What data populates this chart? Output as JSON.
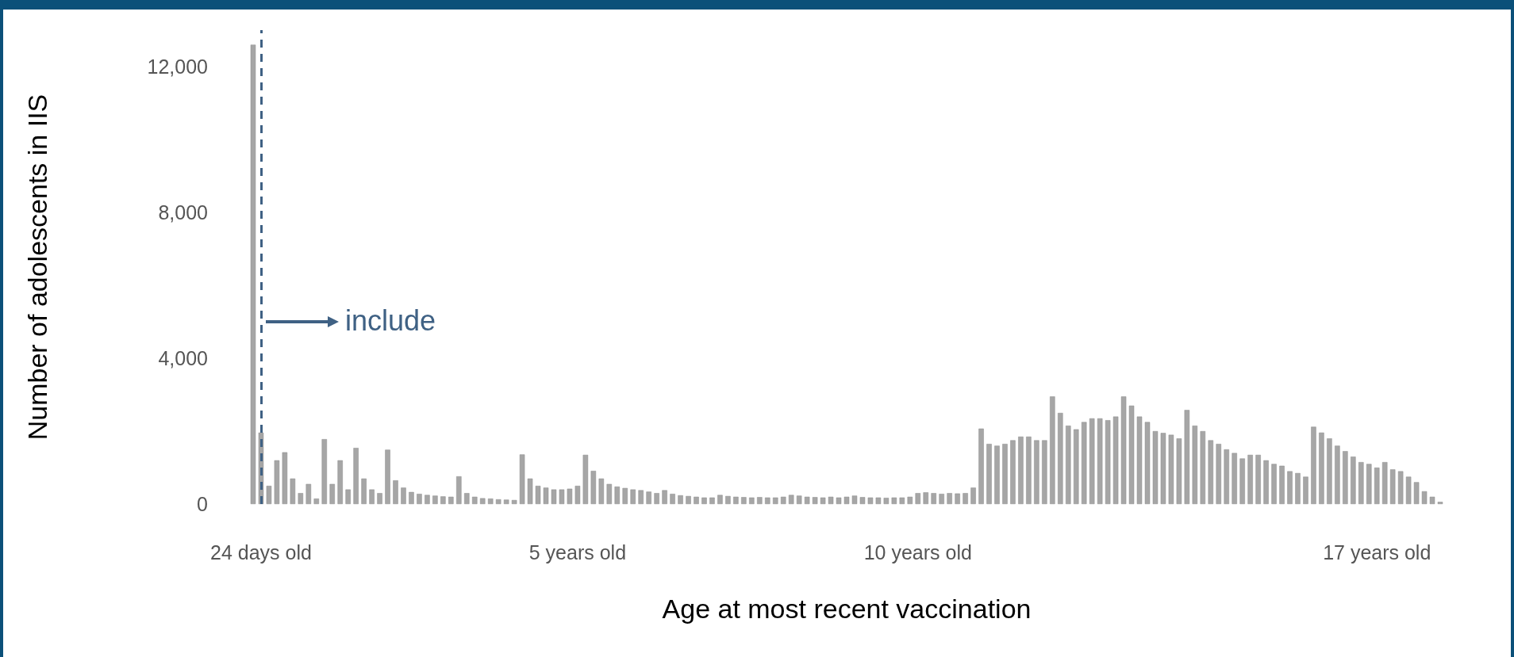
{
  "chart_data": {
    "type": "bar",
    "xlabel": "Age at most recent vaccination",
    "ylabel": "Number of adolescents in IIS",
    "categories": [
      null,
      "24 days old",
      null,
      null,
      null,
      null,
      null,
      null,
      null,
      null,
      null,
      null,
      null,
      null,
      null,
      null,
      null,
      null,
      null,
      null,
      null,
      null,
      null,
      null,
      null,
      null,
      null,
      null,
      null,
      null,
      null,
      null,
      null,
      null,
      null,
      null,
      null,
      null,
      null,
      null,
      null,
      "5 years old",
      null,
      null,
      null,
      null,
      null,
      null,
      null,
      null,
      null,
      null,
      null,
      null,
      null,
      null,
      null,
      null,
      null,
      null,
      null,
      null,
      null,
      null,
      null,
      null,
      null,
      null,
      null,
      null,
      null,
      null,
      null,
      null,
      null,
      null,
      null,
      null,
      null,
      null,
      null,
      null,
      null,
      null,
      "10 years old",
      null,
      null,
      null,
      null,
      null,
      null,
      null,
      null,
      null,
      null,
      null,
      null,
      null,
      null,
      null,
      null,
      null,
      null,
      null,
      null,
      null,
      null,
      null,
      null,
      null,
      null,
      null,
      null,
      null,
      null,
      null,
      null,
      null,
      null,
      null,
      null,
      null,
      null,
      null,
      null,
      null,
      null,
      null,
      null,
      null,
      null,
      null,
      null,
      null,
      null,
      null,
      null,
      null,
      null,
      null,
      null,
      null,
      "17 years old",
      null,
      null,
      null,
      null,
      null,
      null,
      null,
      null
    ],
    "values": [
      12600,
      1960,
      500,
      1200,
      1420,
      700,
      300,
      550,
      150,
      1780,
      550,
      1200,
      400,
      1540,
      700,
      400,
      300,
      1490,
      650,
      450,
      330,
      280,
      250,
      230,
      210,
      200,
      760,
      300,
      200,
      160,
      150,
      130,
      120,
      110,
      1360,
      700,
      500,
      450,
      400,
      400,
      420,
      500,
      1350,
      910,
      700,
      550,
      480,
      440,
      400,
      380,
      340,
      300,
      380,
      280,
      240,
      220,
      200,
      180,
      180,
      250,
      220,
      200,
      190,
      180,
      190,
      180,
      180,
      200,
      250,
      230,
      200,
      190,
      180,
      200,
      180,
      200,
      230,
      190,
      180,
      180,
      170,
      180,
      180,
      200,
      300,
      320,
      300,
      280,
      300,
      290,
      300,
      450,
      2070,
      1650,
      1600,
      1650,
      1750,
      1850,
      1850,
      1750,
      1750,
      2950,
      2500,
      2150,
      2050,
      2250,
      2350,
      2350,
      2300,
      2400,
      2950,
      2700,
      2400,
      2250,
      2000,
      1950,
      1900,
      1800,
      2580,
      2150,
      2000,
      1750,
      1650,
      1500,
      1400,
      1250,
      1350,
      1350,
      1200,
      1100,
      1050,
      900,
      850,
      750,
      2120,
      1960,
      1800,
      1600,
      1450,
      1300,
      1150,
      1100,
      1000,
      1150,
      950,
      900,
      750,
      600,
      350,
      200,
      60
    ],
    "color": "#a6a6a6",
    "ylim": [
      0,
      13000
    ],
    "yticks": [
      0,
      {
        "value": 4000,
        "label": "4,000"
      },
      {
        "value": 8000,
        "label": "8,000"
      },
      {
        "value": 12000,
        "label": "12,000"
      }
    ],
    "grid": false,
    "ref_lines": [
      {
        "axis": "x",
        "value": "24 days old",
        "color": "#3f6184",
        "line_style": "dashed"
      }
    ],
    "annotations": [
      {
        "text": "include",
        "x": "24 days old",
        "y": 5000
      }
    ]
  }
}
